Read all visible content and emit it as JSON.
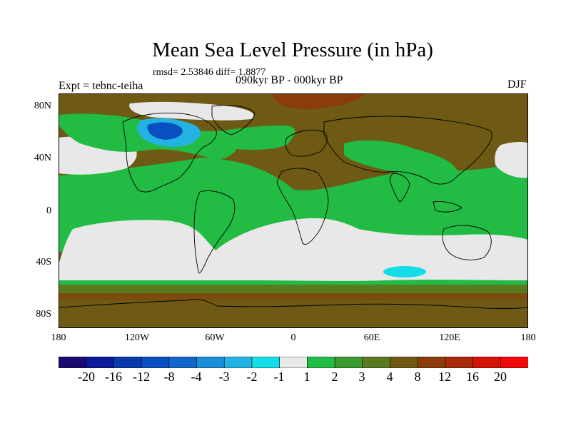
{
  "header": {
    "title": "Mean Sea Level Pressure (in hPa)",
    "stats": "rmsd= 2.53846 diff= 1.8877",
    "experiment": "Expt = tebnc-teiha",
    "period": "090kyr BP - 000kyr BP",
    "season": "DJF"
  },
  "axes": {
    "y_ticks": [
      "80N",
      "40N",
      "0",
      "40S",
      "80S"
    ],
    "x_ticks": [
      "180",
      "120W",
      "60W",
      "0",
      "60E",
      "120E",
      "180"
    ]
  },
  "colorbar": {
    "labels": [
      "-20",
      "-16",
      "-12",
      "-8",
      "-4",
      "-3",
      "-2",
      "-1",
      "1",
      "2",
      "3",
      "4",
      "8",
      "12",
      "16",
      "20"
    ],
    "colors": [
      "#1a0a6e",
      "#0c1a99",
      "#0a3aaa",
      "#0a4fbf",
      "#1266c9",
      "#1b8ed8",
      "#22b3e3",
      "#14dde8",
      "#e8e8e8",
      "#22bb44",
      "#3d9a30",
      "#5a7a20",
      "#6e5a14",
      "#8a3c0c",
      "#a8280a",
      "#d41208",
      "#ee0a0a"
    ]
  },
  "map_colors": {
    "land_line": "#000000",
    "neutral": "#e8e8e8",
    "pos1": "#22bb44",
    "pos2": "#3d9a30",
    "pos3": "#5a7a20",
    "pos4": "#6e5a14",
    "pos5": "#8a3c0c",
    "neg1": "#14dde8",
    "neg2": "#22b3e3",
    "neg4": "#1266c9",
    "neg5": "#0a4fbf"
  }
}
